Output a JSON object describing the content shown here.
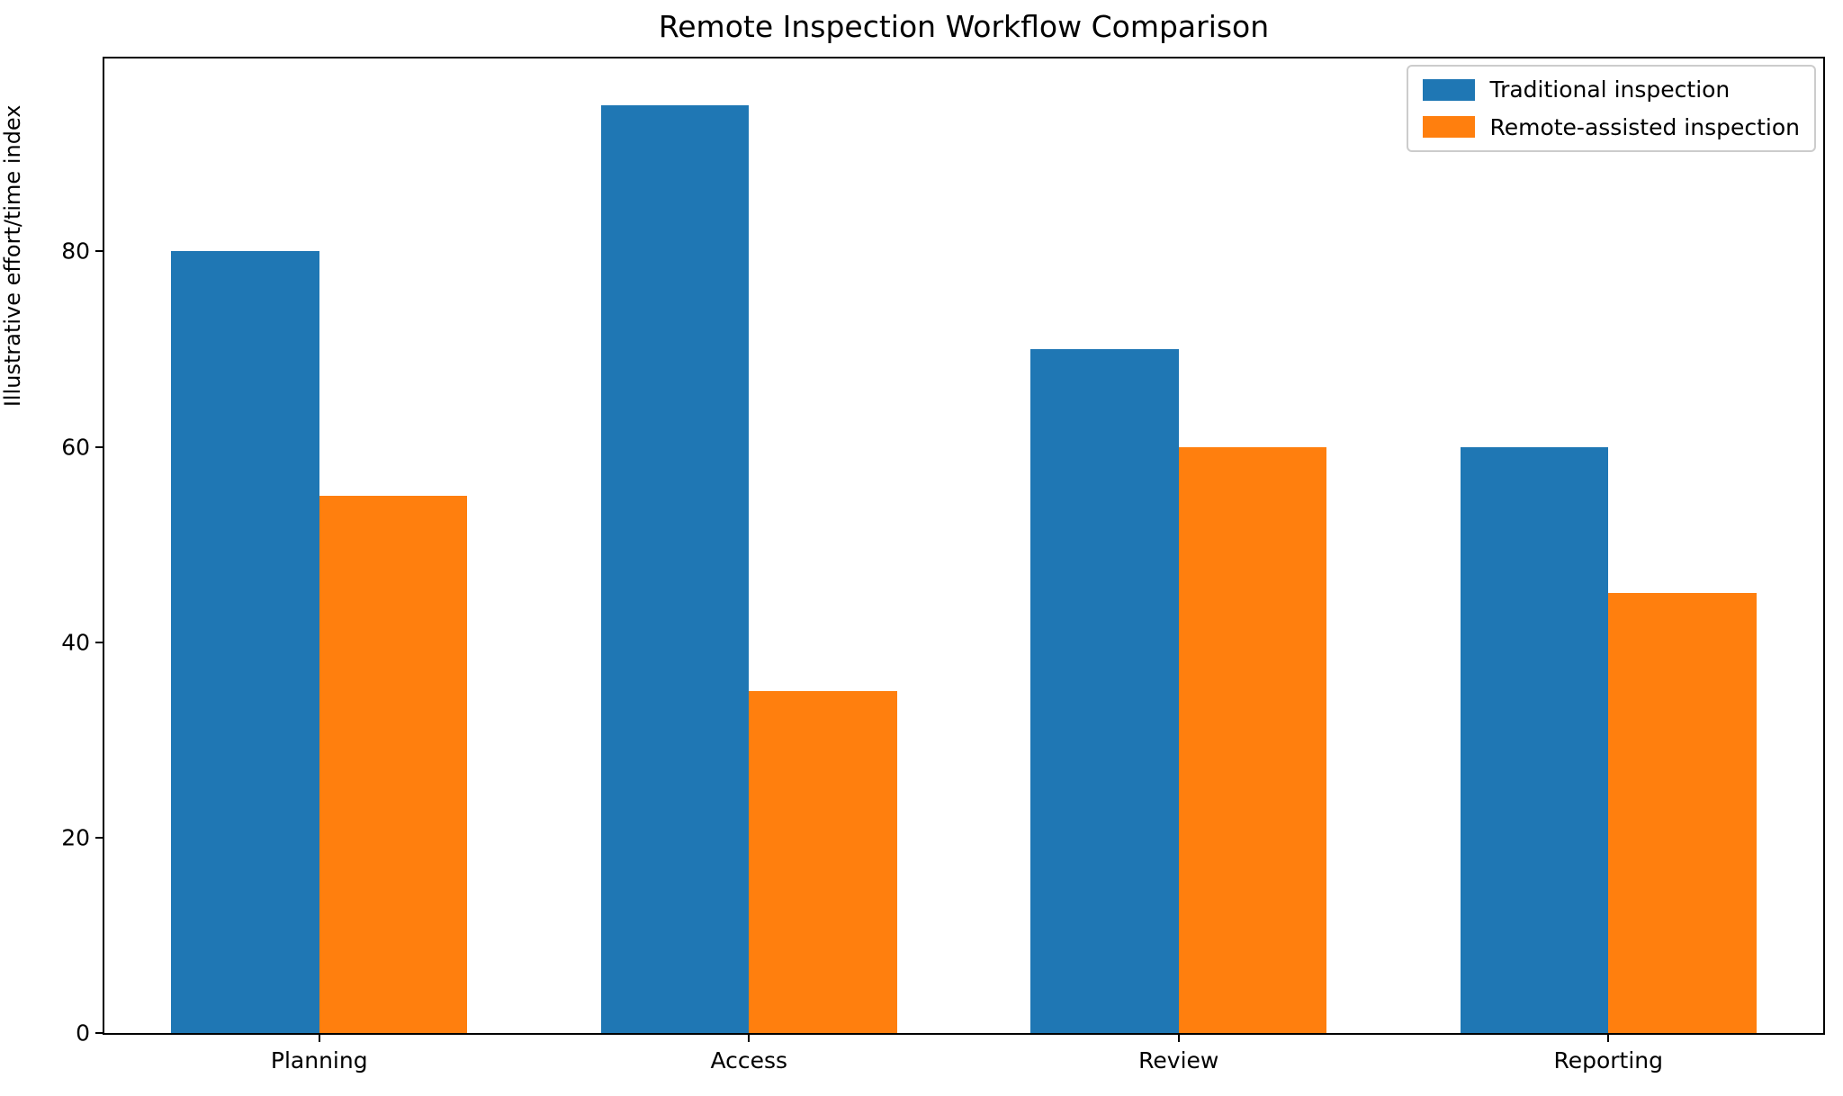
{
  "chart_data": {
    "type": "bar",
    "title": "Remote Inspection Workflow Comparison",
    "xlabel": "",
    "ylabel": "Illustrative effort/time index",
    "categories": [
      "Planning",
      "Access",
      "Review",
      "Reporting"
    ],
    "series": [
      {
        "name": "Traditional inspection",
        "color": "#1f77b4",
        "values": [
          80,
          95,
          70,
          60
        ]
      },
      {
        "name": "Remote-assisted inspection",
        "color": "#ff7f0e",
        "values": [
          55,
          35,
          60,
          45
        ]
      }
    ],
    "yticks": [
      0,
      20,
      40,
      60,
      80
    ],
    "ylim": [
      0,
      99.75
    ],
    "bar_width_fraction": 0.35,
    "group_spacing_units": 4.06,
    "legend_position": "upper right",
    "grid": false,
    "background_color": "#ffffff",
    "axis_color": "#000000",
    "legend_border_color": "#cccccc"
  }
}
